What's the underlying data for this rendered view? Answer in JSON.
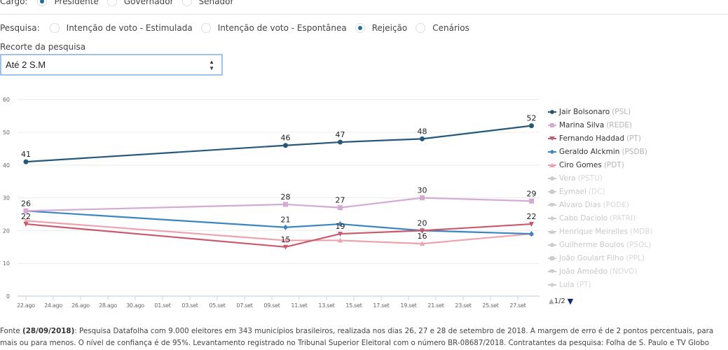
{
  "filters": {
    "cargo": {
      "label": "Cargo:",
      "options": [
        {
          "label": "Presidente",
          "selected": true
        },
        {
          "label": "Governador",
          "selected": false
        },
        {
          "label": "Senador",
          "selected": false
        }
      ]
    },
    "pesquisa": {
      "label": "Pesquisa:",
      "options": [
        {
          "label": "Intenção de voto - Estimulada",
          "selected": false
        },
        {
          "label": "Intenção de voto - Espontânea",
          "selected": false
        },
        {
          "label": "Rejeição",
          "selected": true
        },
        {
          "label": "Cenários",
          "selected": false
        }
      ]
    },
    "recorte": {
      "label": "Recorte da pesquisa",
      "value": "Até 2 S.M"
    }
  },
  "colors": {
    "accent": "#1a6f93",
    "bolsonaro": "#26587a",
    "marina": "#d4a9d4",
    "haddad": "#c85a6e",
    "alckmin": "#3c86c0",
    "ciro": "#eda3ae",
    "inactive": "#cccccc"
  },
  "chart_data": {
    "type": "line",
    "title": "",
    "xlabel": "",
    "ylabel": "",
    "ylim": [
      0,
      60
    ],
    "yticks": [
      0,
      10,
      20,
      30,
      40,
      50,
      60
    ],
    "xticks": [
      "22.ago",
      "24.ago",
      "26.ago",
      "28.ago",
      "30.ago",
      "01.set",
      "03.set",
      "05.set",
      "07.set",
      "09.set",
      "11.set",
      "13.set",
      "15.set",
      "17.set",
      "19.set",
      "21.set",
      "23.set",
      "25.set",
      "27.set"
    ],
    "x": [
      "22.ago",
      "10.set",
      "14.set",
      "20.set",
      "28.set"
    ],
    "x_day_index": [
      0,
      19,
      23,
      29,
      37
    ],
    "grid": true,
    "legend_position": "right",
    "series": [
      {
        "name": "Jair Bolsonaro",
        "party": "(PSL)",
        "color": "#26587a",
        "marker": "circle",
        "active": true,
        "values": [
          41,
          46,
          47,
          48,
          52
        ],
        "labels": [
          41,
          46,
          47,
          48,
          52
        ]
      },
      {
        "name": "Marina Silva",
        "party": "(REDE)",
        "color": "#d4a9d4",
        "marker": "square",
        "active": true,
        "values": [
          26,
          28,
          27,
          30,
          29
        ],
        "labels": [
          null,
          28,
          27,
          30,
          29
        ]
      },
      {
        "name": "Fernando Haddad",
        "party": "(PT)",
        "color": "#c85a6e",
        "marker": "triangle-down",
        "active": true,
        "values": [
          22,
          15,
          19,
          20,
          22
        ],
        "labels": [
          22,
          15,
          19,
          null,
          22
        ]
      },
      {
        "name": "Geraldo Alckmin",
        "party": "(PSDB)",
        "color": "#3c86c0",
        "marker": "diamond",
        "active": true,
        "values": [
          26,
          21,
          22,
          20,
          19
        ],
        "labels": [
          26,
          21,
          null,
          20,
          null
        ]
      },
      {
        "name": "Ciro Gomes",
        "party": "(PDT)",
        "color": "#eda3ae",
        "marker": "triangle",
        "active": true,
        "values": [
          23,
          17,
          17,
          16,
          19
        ],
        "labels": [
          null,
          null,
          null,
          16,
          null
        ]
      },
      {
        "name": "Vera",
        "party": "(PSTU)",
        "color": "#cccccc",
        "marker": "circle",
        "active": false,
        "values": []
      },
      {
        "name": "Eymael",
        "party": "(DC)",
        "color": "#cccccc",
        "marker": "square",
        "active": false,
        "values": []
      },
      {
        "name": "Alvaro Dias",
        "party": "(PODE)",
        "color": "#cccccc",
        "marker": "triangle-down",
        "active": false,
        "values": []
      },
      {
        "name": "Cabo Daciolo",
        "party": "(PATRI)",
        "color": "#cccccc",
        "marker": "diamond",
        "active": false,
        "values": []
      },
      {
        "name": "Henrique Meirelles",
        "party": "(MDB)",
        "color": "#cccccc",
        "marker": "triangle",
        "active": false,
        "values": []
      },
      {
        "name": "Guilherme Boulos",
        "party": "(PSOL)",
        "color": "#cccccc",
        "marker": "circle",
        "active": false,
        "values": []
      },
      {
        "name": "João Goulart Filho",
        "party": "(PPL)",
        "color": "#cccccc",
        "marker": "square",
        "active": false,
        "values": []
      },
      {
        "name": "João Amoêdo",
        "party": "(NOVO)",
        "color": "#cccccc",
        "marker": "triangle-down",
        "active": false,
        "values": []
      },
      {
        "name": "Lula",
        "party": "(PT)",
        "color": "#cccccc",
        "marker": "diamond",
        "active": false,
        "values": []
      }
    ]
  },
  "legend_pager": {
    "label": "1/2",
    "up_icon": "▲",
    "down_icon": "▼"
  },
  "footer": {
    "prefix": "Fonte ",
    "date": "(28/09/2018)",
    "text": ": Pesquisa Datafolha com 9.000 eleitores em 343 municípios brasileiros, realizada nos dias 26, 27 e 28 de setembro de 2018. A margem de erro é de 2 pontos percentuais, para mais ou para menos. O nível de confiança é de 95%. Levantamento registrado no Tribunal Superior Eleitoral com o número BR-08687/2018. Contratantes da pesquisa: Folha de S. Paulo e TV Globo"
  }
}
